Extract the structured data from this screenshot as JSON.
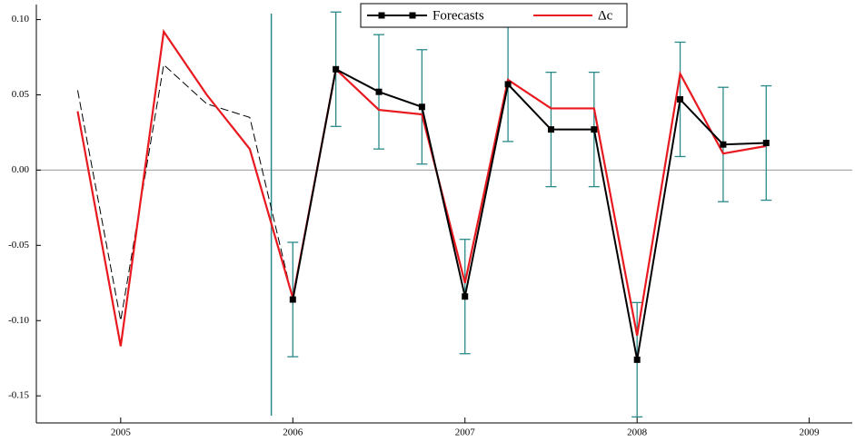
{
  "chart_data": {
    "type": "line",
    "x": [
      2004.75,
      2005,
      2005.25,
      2005.5,
      2005.75,
      2006,
      2006.25,
      2006.5,
      2006.75,
      2007,
      2007.25,
      2007.5,
      2007.75,
      2008,
      2008.25,
      2008.5,
      2008.75
    ],
    "series": [
      {
        "name": "Forecasts",
        "color": "#000000",
        "marker": "square",
        "values": [
          null,
          null,
          null,
          null,
          null,
          -0.086,
          0.067,
          0.052,
          0.042,
          -0.084,
          0.057,
          0.027,
          0.027,
          -0.126,
          0.047,
          0.017,
          0.018
        ],
        "errors": [
          null,
          null,
          null,
          null,
          null,
          0.038,
          0.038,
          0.038,
          0.038,
          0.038,
          0.038,
          0.038,
          0.038,
          0.038,
          0.038,
          0.038,
          0.038
        ]
      },
      {
        "name": "Δc",
        "color": "#e8191f",
        "values": [
          0.039,
          -0.117,
          0.092,
          0.05,
          0.014,
          -0.085,
          0.067,
          0.04,
          0.037,
          -0.075,
          0.06,
          0.041,
          0.041,
          -0.11,
          0.064,
          0.011,
          0.016
        ]
      },
      {
        "color": "#000000",
        "dash": true,
        "values": [
          0.053,
          -0.1,
          0.07,
          0.044,
          0.035,
          -0.086,
          null,
          null,
          null,
          null,
          null,
          null,
          null,
          null,
          null,
          null,
          null
        ]
      }
    ],
    "error_color": "#2a8a8a",
    "xlim": [
      2004.51,
      2009.25
    ],
    "xticks": [
      2005,
      2006,
      2007,
      2008,
      2009
    ],
    "ylim": [
      -0.168,
      0.11
    ],
    "yticks": [
      {
        "value": 0.1,
        "label": "0.10"
      },
      0.05,
      {
        "value": 0,
        "label": "0.00"
      },
      -0.05,
      {
        "value": -0.1,
        "label": "-0.10"
      },
      -0.15
    ],
    "hlines": [
      0
    ],
    "vlines": [
      2005.875
    ],
    "legend": "top"
  }
}
